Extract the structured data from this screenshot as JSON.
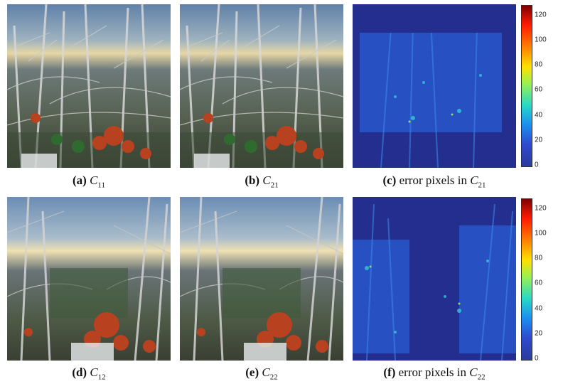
{
  "captions": [
    {
      "label": "(a)",
      "symbol": "C",
      "sub": "11",
      "prefix": ""
    },
    {
      "label": "(b)",
      "symbol": "C",
      "sub": "21",
      "prefix": ""
    },
    {
      "label": "(c)",
      "symbol": "C",
      "sub": "21",
      "prefix": "error pixels in "
    },
    {
      "label": "(d)",
      "symbol": "C",
      "sub": "12",
      "prefix": ""
    },
    {
      "label": "(e)",
      "symbol": "C",
      "sub": "22",
      "prefix": ""
    },
    {
      "label": "(f)",
      "symbol": "C",
      "sub": "22",
      "prefix": "error pixels in "
    }
  ],
  "colorbar": {
    "ticks": [
      "120",
      "100",
      "80",
      "60",
      "40",
      "20",
      "0"
    ],
    "range": [
      0,
      128
    ],
    "colormap": "jet"
  },
  "colors": {
    "sky_top": "#6f8fb0",
    "horizon": "#e9d9a8",
    "error_bg": "#232e8f",
    "foliage": "#b8411f"
  }
}
